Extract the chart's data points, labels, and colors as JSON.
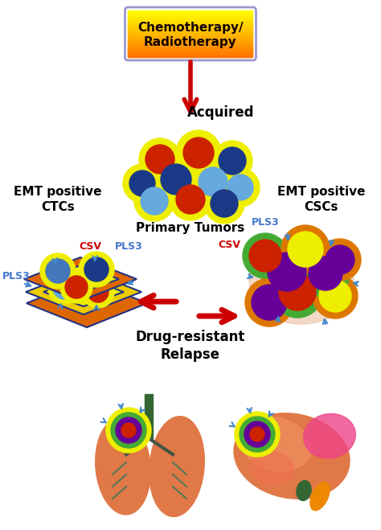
{
  "bg_color": "#ffffff",
  "fig_w": 4.74,
  "fig_h": 6.59,
  "dpi": 100,
  "chemo_text": "Chemotherapy/\nRadiotherapy",
  "acquired_text": "Acquired",
  "primary_text": "Primary Tumors",
  "emt_ctc": "EMT positive\nCTCs",
  "emt_csc": "EMT positive\nCSCs",
  "drug_text": "Drug-resistant\nRelapse",
  "csv_color": "#cc0000",
  "pls3_color": "#4477cc",
  "arrow_red": "#cc0000",
  "arrow_blue": "#4488cc",
  "yellow": "#eeee00",
  "dark_blue": "#1a3a88",
  "mid_blue": "#4477bb",
  "light_blue": "#66aadd",
  "red_cell": "#cc2200",
  "purple_cell": "#660099",
  "green_ring": "#44aa33",
  "orange_ring": "#dd7700",
  "lung_color": "#e07848",
  "liver_color": "#e07848"
}
